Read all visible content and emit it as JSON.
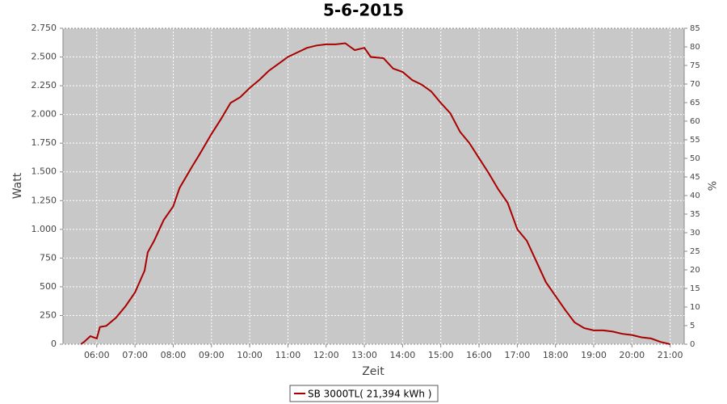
{
  "chart_data": {
    "type": "line",
    "title": "5-6-2015",
    "x_label": "Zeit",
    "y_label": "Watt",
    "y2_label": "%",
    "x": [
      "05:35",
      "05:40",
      "05:50",
      "06:00",
      "06:05",
      "06:15",
      "06:30",
      "06:45",
      "07:00",
      "07:15",
      "07:20",
      "07:30",
      "07:45",
      "08:00",
      "08:10",
      "08:30",
      "08:40",
      "09:00",
      "09:15",
      "09:30",
      "09:45",
      "10:00",
      "10:15",
      "10:30",
      "10:45",
      "11:00",
      "11:15",
      "11:30",
      "11:45",
      "12:00",
      "12:15",
      "12:30",
      "12:45",
      "13:00",
      "13:10",
      "13:30",
      "13:45",
      "14:00",
      "14:15",
      "14:30",
      "14:45",
      "15:00",
      "15:15",
      "15:30",
      "15:45",
      "16:00",
      "16:15",
      "16:30",
      "16:45",
      "17:00",
      "17:15",
      "17:30",
      "17:45",
      "18:00",
      "18:15",
      "18:30",
      "18:45",
      "19:00",
      "19:15",
      "19:30",
      "19:45",
      "20:00",
      "20:15",
      "20:30",
      "20:45",
      "21:00"
    ],
    "series": [
      {
        "name": "SB 3000TL( 21,394 kWh )",
        "color": "#aa0000",
        "values": [
          0,
          20,
          70,
          50,
          150,
          160,
          230,
          330,
          450,
          640,
          800,
          900,
          1080,
          1200,
          1360,
          1550,
          1640,
          1830,
          1960,
          2100,
          2150,
          2230,
          2300,
          2380,
          2440,
          2500,
          2540,
          2580,
          2600,
          2610,
          2610,
          2620,
          2560,
          2580,
          2500,
          2490,
          2400,
          2370,
          2300,
          2260,
          2200,
          2100,
          2010,
          1850,
          1750,
          1620,
          1490,
          1350,
          1230,
          1000,
          900,
          720,
          540,
          420,
          300,
          190,
          140,
          120,
          120,
          110,
          90,
          80,
          60,
          50,
          20,
          0
        ]
      }
    ],
    "xlim": [
      "05:07",
      "21:22"
    ],
    "xticks": [
      "06:00",
      "07:00",
      "08:00",
      "09:00",
      "10:00",
      "11:00",
      "12:00",
      "13:00",
      "14:00",
      "15:00",
      "16:00",
      "17:00",
      "18:00",
      "19:00",
      "20:00",
      "21:00"
    ],
    "ylim": [
      0,
      2750
    ],
    "yticks": [
      0,
      250,
      500,
      750,
      {
        "value": 1000,
        "label": "1.000"
      },
      {
        "value": 1250,
        "label": "1.250"
      },
      {
        "value": 1500,
        "label": "1.500"
      },
      {
        "value": 1750,
        "label": "1.750"
      },
      {
        "value": 2000,
        "label": "2.000"
      },
      {
        "value": 2250,
        "label": "2.250"
      },
      {
        "value": 2500,
        "label": "2.500"
      },
      {
        "value": 2750,
        "label": "2.750"
      }
    ],
    "y2lim": [
      0,
      85
    ],
    "y2ticks": [
      0,
      5,
      10,
      15,
      20,
      25,
      30,
      35,
      40,
      45,
      50,
      55,
      60,
      65,
      70,
      75,
      80,
      85
    ],
    "grid": true
  }
}
